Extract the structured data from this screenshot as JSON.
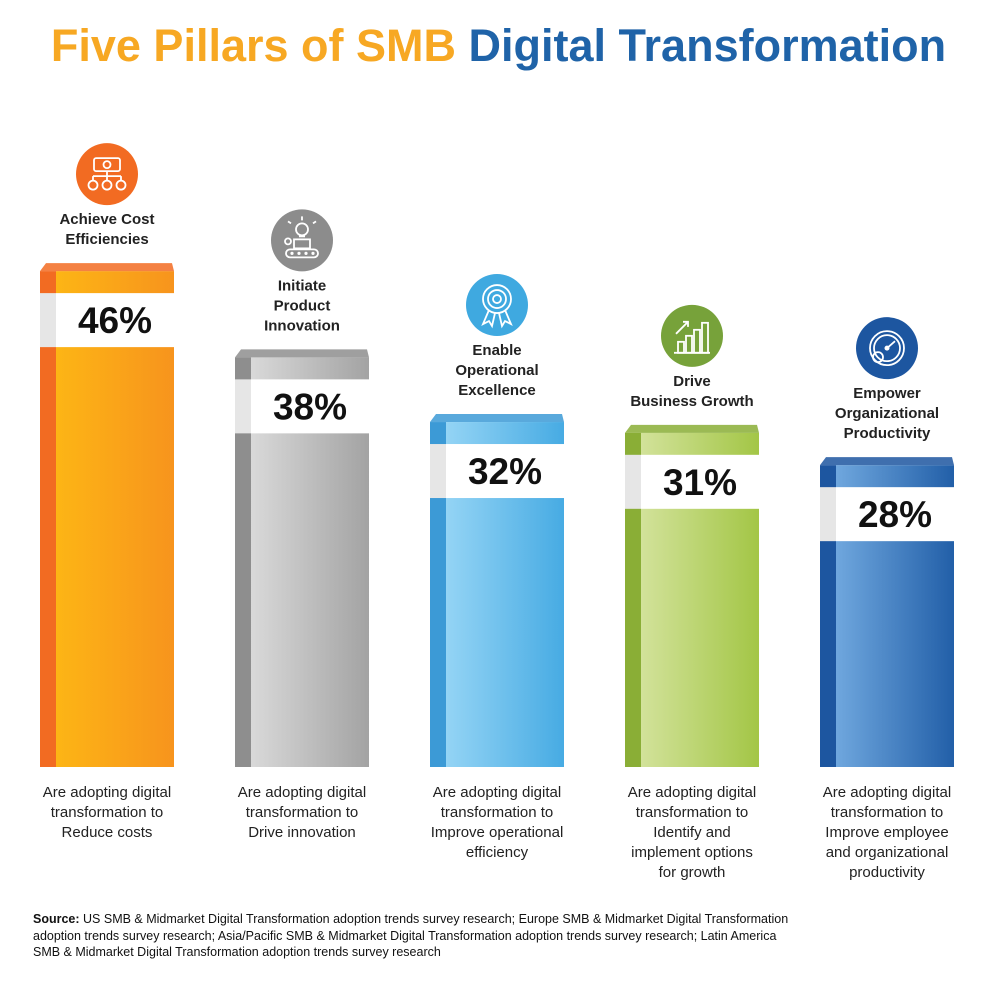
{
  "title": {
    "part1": "Five Pillars of SMB",
    "part2": "Digital Transformation"
  },
  "colors": {
    "title_orange": "#F7A823",
    "title_blue": "#1F63A8",
    "bar_orange": "#F7941D",
    "bar_gray": "#A7A7A7",
    "bar_lightblue": "#5BB8E9",
    "bar_green": "#A9C955",
    "bar_darkblue": "#2A6DB5"
  },
  "chart_data": {
    "type": "bar",
    "categories": [
      "Achieve Cost Efficiencies",
      "Initiate Product Innovation",
      "Enable Operational Excellence",
      "Drive Business Growth",
      "Empower Organizational Productivity"
    ],
    "values": [
      46,
      38,
      32,
      31,
      28
    ],
    "value_labels": [
      "46%",
      "38%",
      "32%",
      "31%",
      "28%"
    ],
    "title": "Five Pillars of SMB Digital Transformation",
    "icons": [
      "money-hierarchy-icon",
      "lightbulb-conveyor-icon",
      "award-ribbon-icon",
      "growth-bars-icon",
      "speedometer-icon"
    ],
    "header_lines": [
      [
        "Achieve Cost",
        "Efficiencies"
      ],
      [
        "Initiate",
        "Product",
        "Innovation"
      ],
      [
        "Enable",
        "Operational",
        "Excellence"
      ],
      [
        "Drive",
        "Business Growth"
      ],
      [
        "Empower",
        "Organizational",
        "Productivity"
      ]
    ],
    "descriptions": [
      [
        "Are adopting digital",
        "transformation to",
        "Reduce costs"
      ],
      [
        "Are adopting digital",
        "transformation to",
        "Drive innovation"
      ],
      [
        "Are adopting digital",
        "transformation to",
        "Improve operational",
        "efficiency"
      ],
      [
        "Are adopting digital",
        "transformation to",
        "Identify and",
        "implement options",
        "for growth"
      ],
      [
        "Are adopting digital",
        "transformation to",
        "Improve employee",
        "and organizational",
        "productivity"
      ]
    ]
  },
  "source": {
    "label": "Source:",
    "text": "US SMB & Midmarket Digital Transformation adoption trends survey research; Europe SMB & Midmarket Digital Transformation adoption trends survey research; Asia/Pacific SMB & Midmarket Digital Transformation adoption trends survey research; Latin America SMB & Midmarket Digital Transformation adoption trends survey research"
  }
}
